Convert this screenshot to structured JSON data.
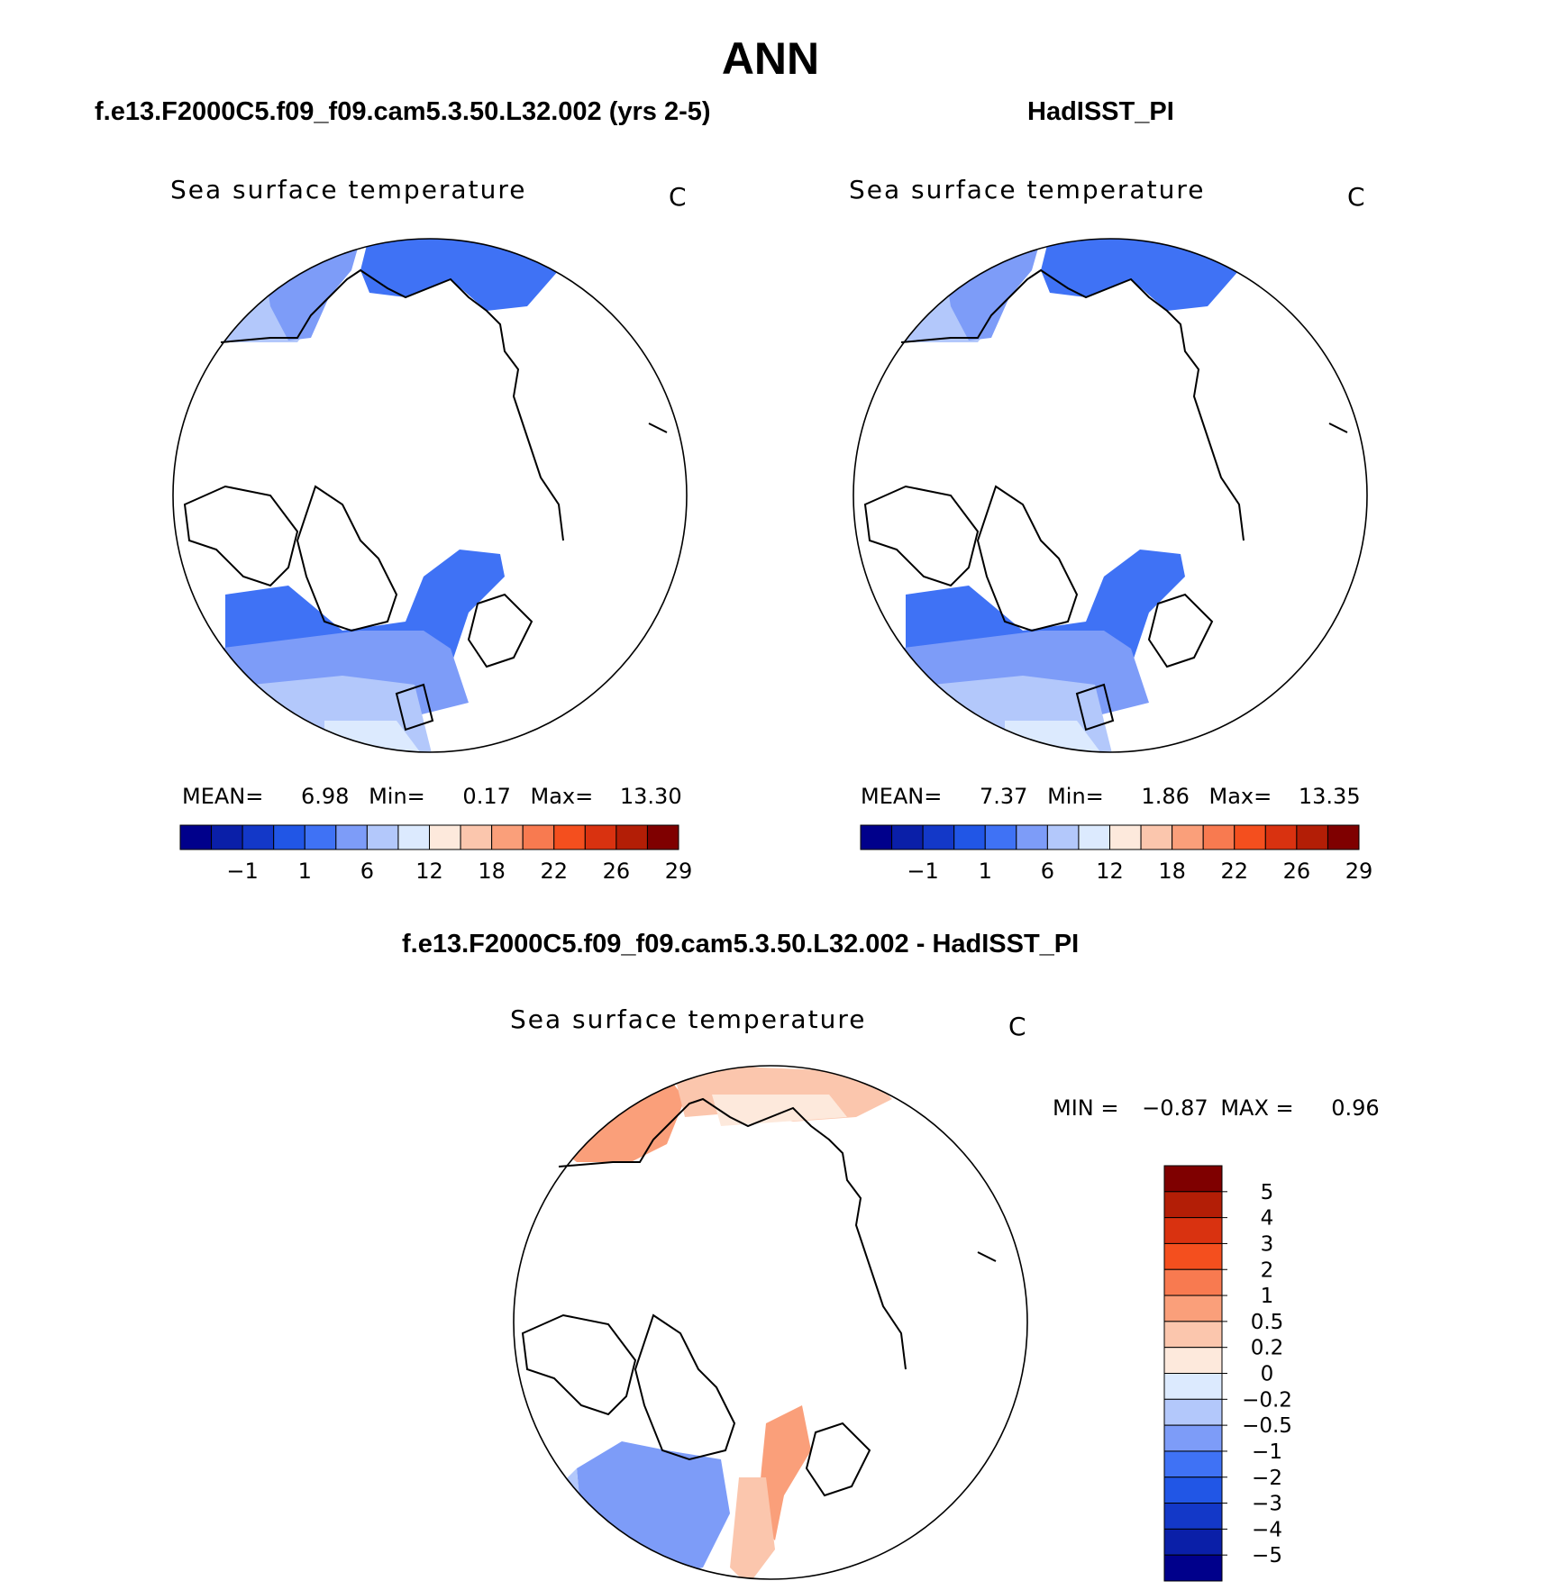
{
  "page_title": "ANN",
  "panels": [
    {
      "case_title": "f.e13.F2000C5.f09_f09.cam5.3.50.L32.002 (yrs 2-5)",
      "var_title": "Sea surface temperature",
      "units": "C",
      "stats_line": {
        "mean_label": "MEAN=",
        "mean": "6.98",
        "min_label": "Min=",
        "min": "0.17",
        "max_label": "Max=",
        "max": "13.30"
      }
    },
    {
      "case_title": "HadISST_PI",
      "var_title": "Sea surface temperature",
      "units": "C",
      "stats_line": {
        "mean_label": "MEAN=",
        "mean": "7.37",
        "min_label": "Min=",
        "min": "1.86",
        "max_label": "Max=",
        "max": "13.35"
      }
    },
    {
      "case_title": "f.e13.F2000C5.f09_f09.cam5.3.50.L32.002 - HadISST_PI",
      "var_title": "Sea surface temperature",
      "units": "C",
      "stats_line": {
        "min_label": "MIN =",
        "min": "−0.87",
        "max_label": "MAX =",
        "max": "0.96"
      }
    }
  ],
  "colors": {
    "sst_colorbar": [
      "#00008b",
      "#0a1fa8",
      "#1338c8",
      "#2156e6",
      "#3f72f5",
      "#7d9cf8",
      "#b3c8fb",
      "#dceafe",
      "#fde9dc",
      "#fbc6ad",
      "#fa9f7a",
      "#f87a50",
      "#f44f1e",
      "#d93210",
      "#b31e06",
      "#7f0000"
    ],
    "diff_colorbar": [
      "#7f0000",
      "#b31e06",
      "#d93210",
      "#f44f1e",
      "#f87a50",
      "#fa9f7a",
      "#fbc6ad",
      "#fde9dc",
      "#dceafe",
      "#b3c8fb",
      "#7d9cf8",
      "#3f72f5",
      "#2156e6",
      "#1338c8",
      "#0a1fa8",
      "#00008b"
    ],
    "land": "#ffffff",
    "coast": "#000000"
  },
  "chart_data": [
    {
      "type": "heatmap",
      "title": "Sea surface temperature",
      "subtitle": "f.e13.F2000C5.f09_f09.cam5.3.50.L32.002 (yrs 2-5)",
      "projection": "north polar stereographic",
      "units": "C",
      "mean": 6.98,
      "min": 0.17,
      "max": 13.3,
      "colorbar_levels": [
        "−1",
        "1",
        "6",
        "12",
        "18",
        "22",
        "26",
        "29"
      ]
    },
    {
      "type": "heatmap",
      "title": "Sea surface temperature",
      "subtitle": "HadISST_PI",
      "projection": "north polar stereographic",
      "units": "C",
      "mean": 7.37,
      "min": 1.86,
      "max": 13.35,
      "colorbar_levels": [
        "−1",
        "1",
        "6",
        "12",
        "18",
        "22",
        "26",
        "29"
      ]
    },
    {
      "type": "heatmap",
      "title": "Sea surface temperature",
      "subtitle": "f.e13.F2000C5.f09_f09.cam5.3.50.L32.002 - HadISST_PI",
      "projection": "north polar stereographic",
      "units": "C",
      "min": -0.87,
      "max": 0.96,
      "colorbar_levels": [
        "5",
        "4",
        "3",
        "2",
        "1",
        "0.5",
        "0.2",
        "0",
        "−0.2",
        "−0.5",
        "−1",
        "−2",
        "−3",
        "−4",
        "−5"
      ]
    }
  ]
}
